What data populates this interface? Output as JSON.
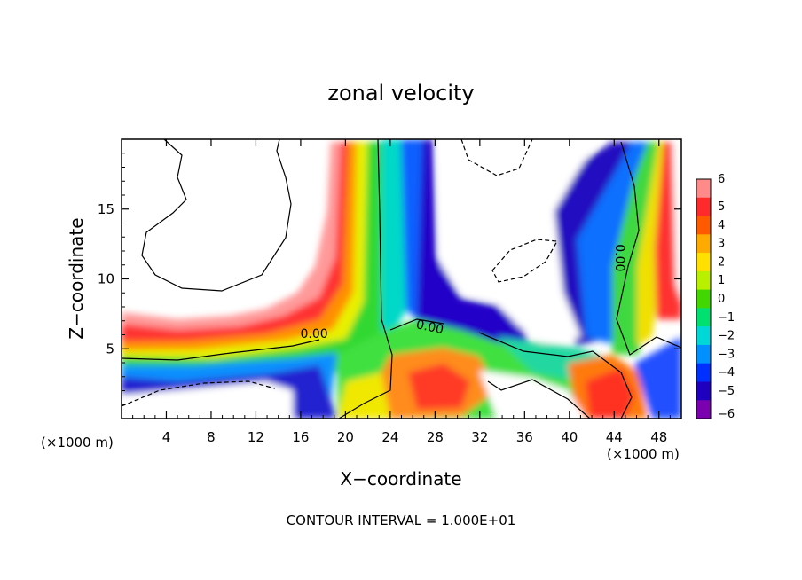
{
  "chart_data": {
    "type": "heatmap",
    "title": "zonal velocity",
    "xlabel": "X−coordinate",
    "ylabel": "Z−coordinate",
    "x_unit": "(×1000 m)",
    "z_unit": "(×1000 m)",
    "xlim": [
      0,
      50
    ],
    "ylim": [
      0,
      20
    ],
    "x_ticks": [
      4,
      8,
      12,
      16,
      20,
      24,
      28,
      32,
      36,
      40,
      44,
      48
    ],
    "y_ticks": [
      5,
      10,
      15
    ],
    "colorbar": {
      "levels": [
        6,
        5,
        4,
        3,
        2,
        1,
        0,
        -1,
        -2,
        -3,
        -4,
        -5,
        -6
      ],
      "labels": [
        "6",
        "5",
        "4",
        "3",
        "2",
        "1",
        "0",
        "−1",
        "−2",
        "−3",
        "−4",
        "−5",
        "−6"
      ],
      "colors": [
        "#ff8a8a",
        "#ff2a2a",
        "#ff5a00",
        "#ffaa00",
        "#ffe000",
        "#b8f000",
        "#40d800",
        "#00e070",
        "#00d8d8",
        "#0090ff",
        "#0030ff",
        "#2000c0",
        "#7a00b0"
      ]
    },
    "contour_labels": [
      {
        "text": "0.00",
        "x": 17.2,
        "y": 5.9
      },
      {
        "text": "0.00",
        "x": 27.5,
        "y": 6.4
      },
      {
        "text": "0.00",
        "x": 44.3,
        "y": 11.5
      }
    ],
    "contour_interval_text": "CONTOUR INTERVAL = 1.000E+01"
  }
}
